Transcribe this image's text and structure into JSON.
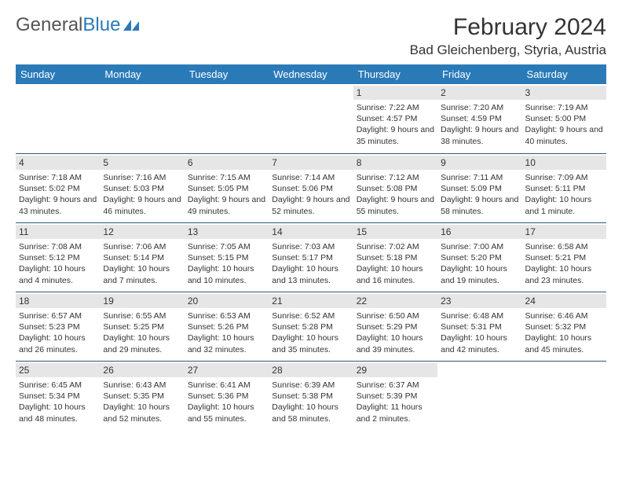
{
  "logo": {
    "text1": "General",
    "text2": "Blue"
  },
  "title": "February 2024",
  "location": "Bad Gleichenberg, Styria, Austria",
  "header_bg": "#2b7ab8",
  "daynum_bg": "#e6e6e6",
  "border_color": "#2b5a7a",
  "days": [
    "Sunday",
    "Monday",
    "Tuesday",
    "Wednesday",
    "Thursday",
    "Friday",
    "Saturday"
  ],
  "weeks": [
    [
      null,
      null,
      null,
      null,
      {
        "n": "1",
        "sr": "7:22 AM",
        "ss": "4:57 PM",
        "dl": "9 hours and 35 minutes."
      },
      {
        "n": "2",
        "sr": "7:20 AM",
        "ss": "4:59 PM",
        "dl": "9 hours and 38 minutes."
      },
      {
        "n": "3",
        "sr": "7:19 AM",
        "ss": "5:00 PM",
        "dl": "9 hours and 40 minutes."
      }
    ],
    [
      {
        "n": "4",
        "sr": "7:18 AM",
        "ss": "5:02 PM",
        "dl": "9 hours and 43 minutes."
      },
      {
        "n": "5",
        "sr": "7:16 AM",
        "ss": "5:03 PM",
        "dl": "9 hours and 46 minutes."
      },
      {
        "n": "6",
        "sr": "7:15 AM",
        "ss": "5:05 PM",
        "dl": "9 hours and 49 minutes."
      },
      {
        "n": "7",
        "sr": "7:14 AM",
        "ss": "5:06 PM",
        "dl": "9 hours and 52 minutes."
      },
      {
        "n": "8",
        "sr": "7:12 AM",
        "ss": "5:08 PM",
        "dl": "9 hours and 55 minutes."
      },
      {
        "n": "9",
        "sr": "7:11 AM",
        "ss": "5:09 PM",
        "dl": "9 hours and 58 minutes."
      },
      {
        "n": "10",
        "sr": "7:09 AM",
        "ss": "5:11 PM",
        "dl": "10 hours and 1 minute."
      }
    ],
    [
      {
        "n": "11",
        "sr": "7:08 AM",
        "ss": "5:12 PM",
        "dl": "10 hours and 4 minutes."
      },
      {
        "n": "12",
        "sr": "7:06 AM",
        "ss": "5:14 PM",
        "dl": "10 hours and 7 minutes."
      },
      {
        "n": "13",
        "sr": "7:05 AM",
        "ss": "5:15 PM",
        "dl": "10 hours and 10 minutes."
      },
      {
        "n": "14",
        "sr": "7:03 AM",
        "ss": "5:17 PM",
        "dl": "10 hours and 13 minutes."
      },
      {
        "n": "15",
        "sr": "7:02 AM",
        "ss": "5:18 PM",
        "dl": "10 hours and 16 minutes."
      },
      {
        "n": "16",
        "sr": "7:00 AM",
        "ss": "5:20 PM",
        "dl": "10 hours and 19 minutes."
      },
      {
        "n": "17",
        "sr": "6:58 AM",
        "ss": "5:21 PM",
        "dl": "10 hours and 23 minutes."
      }
    ],
    [
      {
        "n": "18",
        "sr": "6:57 AM",
        "ss": "5:23 PM",
        "dl": "10 hours and 26 minutes."
      },
      {
        "n": "19",
        "sr": "6:55 AM",
        "ss": "5:25 PM",
        "dl": "10 hours and 29 minutes."
      },
      {
        "n": "20",
        "sr": "6:53 AM",
        "ss": "5:26 PM",
        "dl": "10 hours and 32 minutes."
      },
      {
        "n": "21",
        "sr": "6:52 AM",
        "ss": "5:28 PM",
        "dl": "10 hours and 35 minutes."
      },
      {
        "n": "22",
        "sr": "6:50 AM",
        "ss": "5:29 PM",
        "dl": "10 hours and 39 minutes."
      },
      {
        "n": "23",
        "sr": "6:48 AM",
        "ss": "5:31 PM",
        "dl": "10 hours and 42 minutes."
      },
      {
        "n": "24",
        "sr": "6:46 AM",
        "ss": "5:32 PM",
        "dl": "10 hours and 45 minutes."
      }
    ],
    [
      {
        "n": "25",
        "sr": "6:45 AM",
        "ss": "5:34 PM",
        "dl": "10 hours and 48 minutes."
      },
      {
        "n": "26",
        "sr": "6:43 AM",
        "ss": "5:35 PM",
        "dl": "10 hours and 52 minutes."
      },
      {
        "n": "27",
        "sr": "6:41 AM",
        "ss": "5:36 PM",
        "dl": "10 hours and 55 minutes."
      },
      {
        "n": "28",
        "sr": "6:39 AM",
        "ss": "5:38 PM",
        "dl": "10 hours and 58 minutes."
      },
      {
        "n": "29",
        "sr": "6:37 AM",
        "ss": "5:39 PM",
        "dl": "11 hours and 2 minutes."
      },
      null,
      null
    ]
  ]
}
